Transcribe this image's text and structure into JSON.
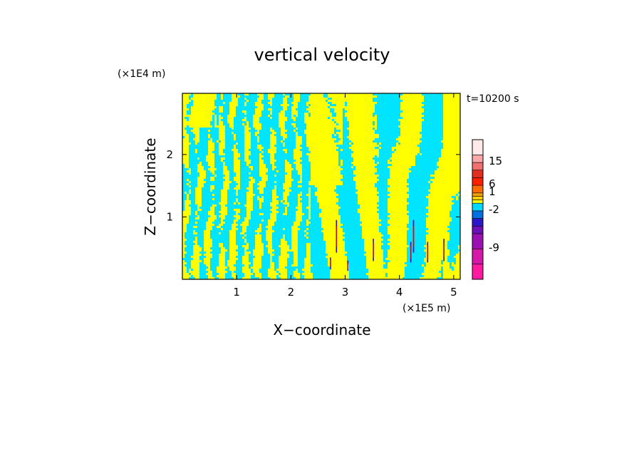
{
  "chart_data": {
    "type": "heatmap",
    "title": "vertical velocity",
    "xlabel": "X−coordinate",
    "ylabel": "Z−coordinate",
    "x_unit": "(×1E5 m)",
    "y_unit": "(×1E4 m)",
    "time_label": "t=10200 s",
    "xlim": [
      0,
      5.12
    ],
    "ylim": [
      0,
      2.98
    ],
    "x_ticks": [
      1,
      2,
      3,
      4,
      5
    ],
    "x_tick_labels": [
      "1",
      "2",
      "3",
      "4",
      "5"
    ],
    "y_ticks": [
      1,
      2
    ],
    "y_tick_labels": [
      "1",
      "2"
    ],
    "field_colors": {
      "updraft": "#ffff00",
      "downdraft": "#00e5ff",
      "strong_updraft": "#cc1010",
      "strong_downdraft": "#3a10a0"
    },
    "colorbar": {
      "levels": [
        "-9",
        "-2",
        "1",
        "6",
        "15"
      ],
      "colors": [
        "#ff1aa0",
        "#d418a8",
        "#9a10b0",
        "#6a10b8",
        "#2a18c8",
        "#0070e0",
        "#00d8ff",
        "#ffff00",
        "#ffd000",
        "#f0a000",
        "#ff6a00",
        "#ff2000",
        "#e03020",
        "#f07070",
        "#f8a8a8",
        "#ffe8e8"
      ]
    }
  }
}
